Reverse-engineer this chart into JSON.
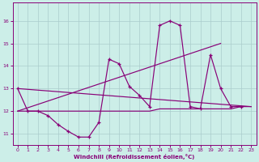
{
  "xlabel": "Windchill (Refroidissement éolien,°C)",
  "background_color": "#cceee8",
  "line_color": "#880077",
  "grid_color": "#aacccc",
  "x_values": [
    0,
    1,
    2,
    3,
    4,
    5,
    6,
    7,
    8,
    9,
    10,
    11,
    12,
    13,
    14,
    15,
    16,
    17,
    18,
    19,
    20,
    21,
    22,
    23
  ],
  "line_jagged": [
    13.0,
    12.0,
    12.0,
    11.8,
    11.4,
    11.1,
    10.85,
    10.85,
    11.5,
    14.3,
    14.1,
    13.1,
    12.7,
    12.2,
    15.8,
    16.0,
    15.8,
    12.2,
    12.1,
    14.5,
    13.0,
    12.2,
    12.2,
    null
  ],
  "line_flat": [
    12.0,
    12.0,
    12.0,
    12.0,
    12.0,
    12.0,
    12.0,
    12.0,
    12.0,
    12.0,
    12.0,
    12.0,
    12.0,
    12.0,
    12.1,
    12.1,
    12.1,
    12.1,
    12.1,
    12.1,
    12.1,
    12.1,
    12.2,
    12.2
  ],
  "trend1_x": [
    0,
    23
  ],
  "trend1_y": [
    13.0,
    12.2
  ],
  "trend2_x": [
    0,
    20
  ],
  "trend2_y": [
    12.0,
    15.0
  ],
  "ylim": [
    10.5,
    16.8
  ],
  "xlim": [
    -0.5,
    23.5
  ],
  "yticks": [
    11,
    12,
    13,
    14,
    15,
    16
  ],
  "xticks": [
    0,
    1,
    2,
    3,
    4,
    5,
    6,
    7,
    8,
    9,
    10,
    11,
    12,
    13,
    14,
    15,
    16,
    17,
    18,
    19,
    20,
    21,
    22,
    23
  ]
}
